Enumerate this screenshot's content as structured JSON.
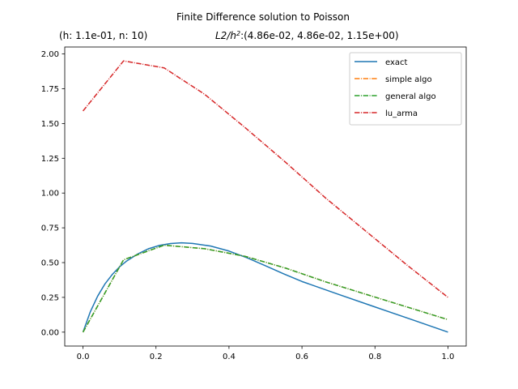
{
  "chart_data": {
    "type": "line",
    "title": "Finite Difference solution to Poisson",
    "subtitle_left": "(h: 1.1e-01, n: 10)",
    "subtitle_right_label": "L2/h",
    "subtitle_right_sup": "2",
    "subtitle_right_values": ":(4.86e-02, 4.86e-02,  1.15e+00)",
    "xlabel": "",
    "ylabel": "",
    "xlim": [
      -0.05,
      1.05
    ],
    "ylim": [
      -0.1,
      2.05
    ],
    "xticks": [
      0.0,
      0.2,
      0.4,
      0.6,
      0.8,
      1.0
    ],
    "xtick_labels": [
      "0.0",
      "0.2",
      "0.4",
      "0.6",
      "0.8",
      "1.0"
    ],
    "yticks": [
      0.0,
      0.25,
      0.5,
      0.75,
      1.0,
      1.25,
      1.5,
      1.75,
      2.0
    ],
    "ytick_labels": [
      "0.00",
      "0.25",
      "0.50",
      "0.75",
      "1.00",
      "1.25",
      "1.50",
      "1.75",
      "2.00"
    ],
    "grid": false,
    "legend_position": "top-right",
    "series": [
      {
        "name": "exact",
        "color": "#1f77b4",
        "style": "solid",
        "x": [
          0.0,
          0.02,
          0.04,
          0.06,
          0.08,
          0.1,
          0.12,
          0.15,
          0.18,
          0.21,
          0.24,
          0.27,
          0.3,
          0.35,
          0.4,
          0.45,
          0.5,
          0.55,
          0.6,
          0.7,
          0.8,
          0.9,
          1.0
        ],
        "y": [
          0.0,
          0.146,
          0.258,
          0.346,
          0.414,
          0.469,
          0.512,
          0.562,
          0.6,
          0.624,
          0.637,
          0.642,
          0.638,
          0.619,
          0.583,
          0.534,
          0.477,
          0.419,
          0.364,
          0.272,
          0.181,
          0.091,
          0.0
        ]
      },
      {
        "name": "simple algo",
        "color": "#ff7f0e",
        "style": "dashdot",
        "x": [
          0.0,
          0.1111,
          0.2222,
          0.3333,
          0.4444,
          0.5556,
          0.6667,
          0.7778,
          0.8889,
          1.0
        ],
        "y": [
          0.0,
          0.52,
          0.625,
          0.6,
          0.545,
          0.46,
          0.36,
          0.27,
          0.18,
          0.09
        ]
      },
      {
        "name": "general algo",
        "color": "#2ca02c",
        "style": "dashdot",
        "x": [
          0.0,
          0.1111,
          0.2222,
          0.3333,
          0.4444,
          0.5556,
          0.6667,
          0.7778,
          0.8889,
          1.0
        ],
        "y": [
          0.0,
          0.52,
          0.625,
          0.6,
          0.545,
          0.46,
          0.36,
          0.27,
          0.18,
          0.09
        ]
      },
      {
        "name": "lu_arma",
        "color": "#d62728",
        "style": "dashdot",
        "x": [
          0.0,
          0.1111,
          0.2222,
          0.3333,
          0.4444,
          0.5556,
          0.6667,
          0.7778,
          0.8889,
          1.0
        ],
        "y": [
          1.59,
          1.95,
          1.9,
          1.71,
          1.47,
          1.22,
          0.96,
          0.72,
          0.48,
          0.25
        ]
      }
    ]
  }
}
